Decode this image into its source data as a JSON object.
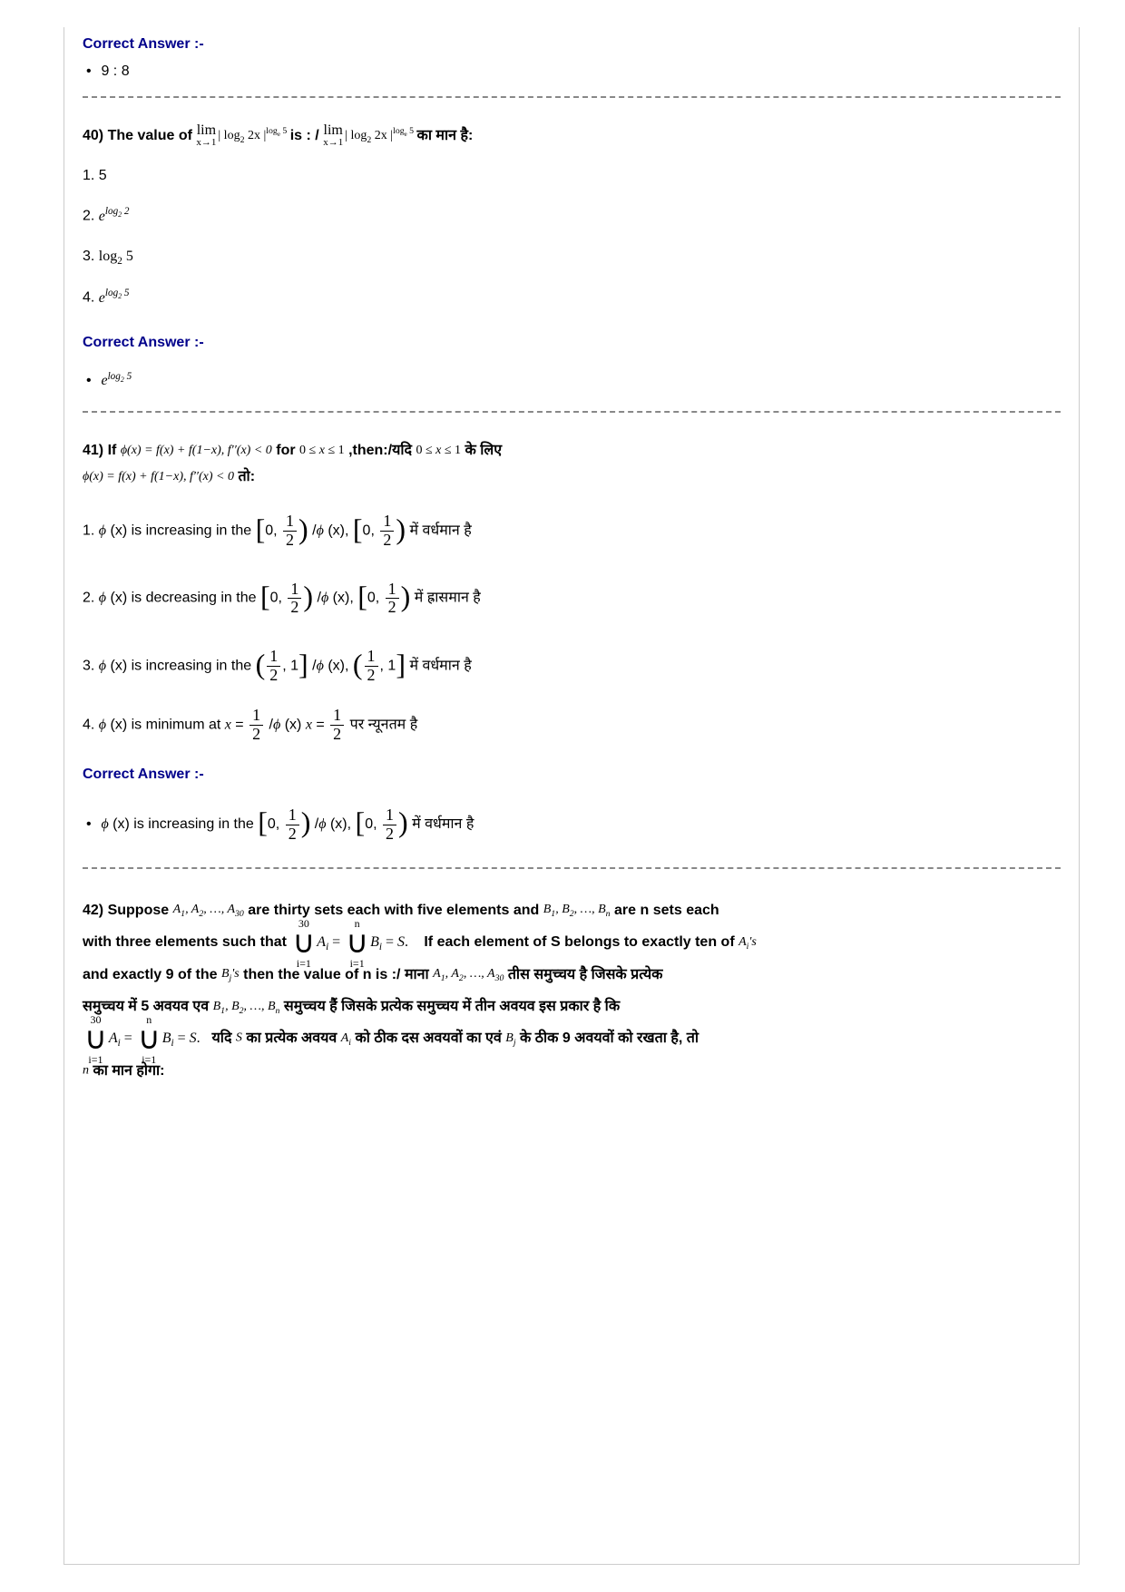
{
  "colors": {
    "label_color": "#00008b",
    "text_color": "#000000",
    "divider_color": "#888888",
    "background": "#ffffff"
  },
  "prev_answer": {
    "label": "Correct Answer :-",
    "value": "9 : 8"
  },
  "q40": {
    "number": "40)",
    "prefix_en": "The value of ",
    "expr": "lim_{x→1} |log₂ 2x|^{logₑ 5}",
    "mid": " is : / ",
    "expr2": "lim_{x→1} |log₂ 2x|^{logₑ 5}",
    "suffix_hi": " का मान है:",
    "opt1": "5",
    "opt2": "e^{log₂ 2}",
    "opt3": "log₂ 5",
    "opt4": "e^{log₂ 5}",
    "answer_label": "Correct Answer :-",
    "answer": "e^{log₂ 5}"
  },
  "q41": {
    "number": "41)",
    "if_label": "If",
    "cond": "φ(x) = f(x) + f(1−x), f′′(x) < 0",
    "for_label": " for ",
    "range": "0 ≤ x ≤ 1",
    "then_label": ",then:/यदि ",
    "range2": "0 ≤ x ≤ 1",
    "suffix_hi": "के लिए",
    "cond2": "φ(x) = f(x) + f(1−x), f′′(x) < 0",
    "suffix2_hi": " तो:",
    "opt1_en_a": " (x) is increasing  in the ",
    "opt1_int": "[0, 1/2)",
    "opt1_mid": "/",
    "opt1_hi": " में वर्धमान है",
    "opt2_en_a": " (x) is decreasing  in the",
    "opt2_hi": " में ह्रासमान है",
    "opt3_en_a": " (x) is increasing in the ",
    "opt3_int": "(1/2, 1]",
    "opt3_hi": "में वर्धमान है",
    "opt4_en_a": " (x) is minimum at ",
    "opt4_x": "x = 1/2",
    "opt4_hi": " पर न्यूनतम है",
    "answer_label": "Correct Answer :-",
    "ans_en": " (x) is increasing  in the ",
    "ans_hi": " में वर्धमान है"
  },
  "q42": {
    "number": "42)",
    "text1": "Suppose ",
    "setsA": "A₁, A₂, …, A₃₀",
    "text2": " are thirty sets each with five elements and ",
    "setsB": "B₁, B₂, …, Bₙ",
    "text3": " are n sets each",
    "text4": "with three elements such that ",
    "union_expr": "⋃_{i=1}^{30} Aᵢ = ⋃_{i=1}^{n} Bᵢ = S.",
    "text5": " If each element of S belongs to exactly ten of ",
    "Ais": "Aᵢ's",
    "text6": " and exactly 9 of the ",
    "Bjs": "Bⱼ's",
    "text7": " then the value of n is :/ माना ",
    "setsA2": "A₁, A₂, …, A₃₀",
    "text8": " तीस समुच्चय है जिसके प्रत्येक",
    "text9": "समुच्चय में 5 अवयव एव ",
    "setsB2": "B₁, B₂, …, Bₙ",
    "text10": " समुच्चय हैं जिसके प्रत्येक समुच्चय में तीन अवयव इस प्रकार है कि",
    "text11": "यदि ",
    "S": "S",
    "text12": " का प्रत्येक अवयव ",
    "Ai": "Aᵢ",
    "text13": " को ठीक दस अवयवों का एवं ",
    "Bj": "Bⱼ",
    "text14": " के ठीक 9 अवयवों को रखता है, तो",
    "n": "n",
    "text15": " का मान होगा:"
  }
}
